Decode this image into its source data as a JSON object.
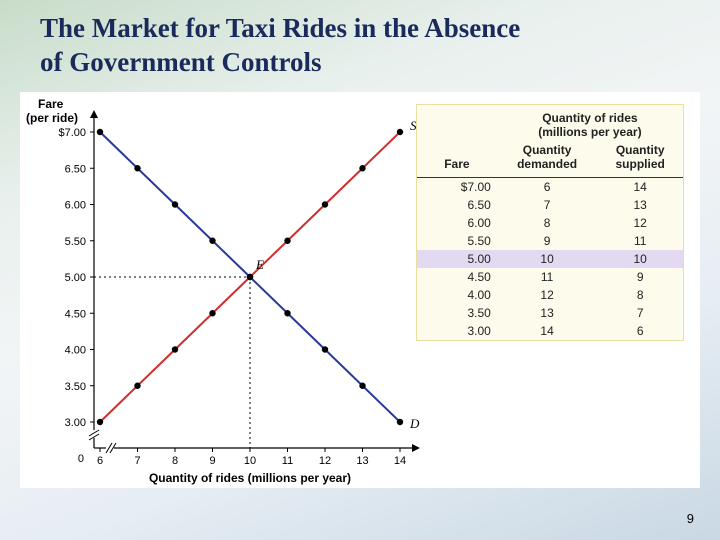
{
  "title_line1": "The Market for Taxi Rides in the Absence",
  "title_line2": "of Government Controls",
  "title_color": "#1a2a5a",
  "title_fontsize": 27,
  "page_number": "9",
  "chart": {
    "type": "scatter-line",
    "y_axis_label_line1": "Fare",
    "y_axis_label_line2": "(per ride)",
    "x_axis_label": "Quantity of rides (millions per year)",
    "x_ticks": [
      6,
      7,
      8,
      9,
      10,
      11,
      12,
      13,
      14
    ],
    "y_ticks": [
      "$7.00",
      "6.50",
      "6.00",
      "5.50",
      "5.00",
      "4.50",
      "4.00",
      "3.50",
      "3.00"
    ],
    "y_tick_values": [
      7.0,
      6.5,
      6.0,
      5.5,
      5.0,
      4.5,
      4.0,
      3.5,
      3.0
    ],
    "x_origin_label": "0",
    "y_origin_label": "0",
    "equilibrium_label": "E",
    "supply_label": "S",
    "demand_label": "D",
    "supply_points": [
      [
        6,
        3.0
      ],
      [
        7,
        3.5
      ],
      [
        8,
        4.0
      ],
      [
        9,
        4.5
      ],
      [
        10,
        5.0
      ],
      [
        11,
        5.5
      ],
      [
        12,
        6.0
      ],
      [
        13,
        6.5
      ],
      [
        14,
        7.0
      ]
    ],
    "demand_points": [
      [
        6,
        7.0
      ],
      [
        7,
        6.5
      ],
      [
        8,
        6.0
      ],
      [
        9,
        5.5
      ],
      [
        10,
        5.0
      ],
      [
        11,
        4.5
      ],
      [
        12,
        4.0
      ],
      [
        13,
        3.5
      ],
      [
        14,
        3.0
      ]
    ],
    "supply_color": "#d12e2e",
    "demand_color": "#2a3a9a",
    "marker_color": "#000000",
    "marker_radius": 3.2,
    "line_width": 2.0,
    "axis_color": "#000000",
    "dotted_color": "#000000",
    "background_color": "#ffffff",
    "eq_x": 10,
    "eq_y": 5.0,
    "axis_label_fontsize": 12,
    "tick_fontsize": 11,
    "xlim": [
      6,
      14
    ],
    "ylim": [
      3.0,
      7.0
    ]
  },
  "table": {
    "super_header": "Quantity of rides\n(millions per year)",
    "columns": [
      "Fare",
      "Quantity demanded",
      "Quantity supplied"
    ],
    "rows": [
      [
        "$7.00",
        "6",
        "14"
      ],
      [
        "6.50",
        "7",
        "13"
      ],
      [
        "6.00",
        "8",
        "12"
      ],
      [
        "5.50",
        "9",
        "11"
      ],
      [
        "5.00",
        "10",
        "10"
      ],
      [
        "4.50",
        "11",
        "9"
      ],
      [
        "4.00",
        "12",
        "8"
      ],
      [
        "3.50",
        "13",
        "7"
      ],
      [
        "3.00",
        "14",
        "6"
      ]
    ],
    "highlight_row_index": 4,
    "bg_color": "#fdfbec",
    "border_color": "#e8e0a0",
    "highlight_color": "#e3daf2",
    "header_fontsize": 12,
    "cell_fontsize": 12,
    "col_align": [
      "right",
      "center",
      "center"
    ]
  }
}
